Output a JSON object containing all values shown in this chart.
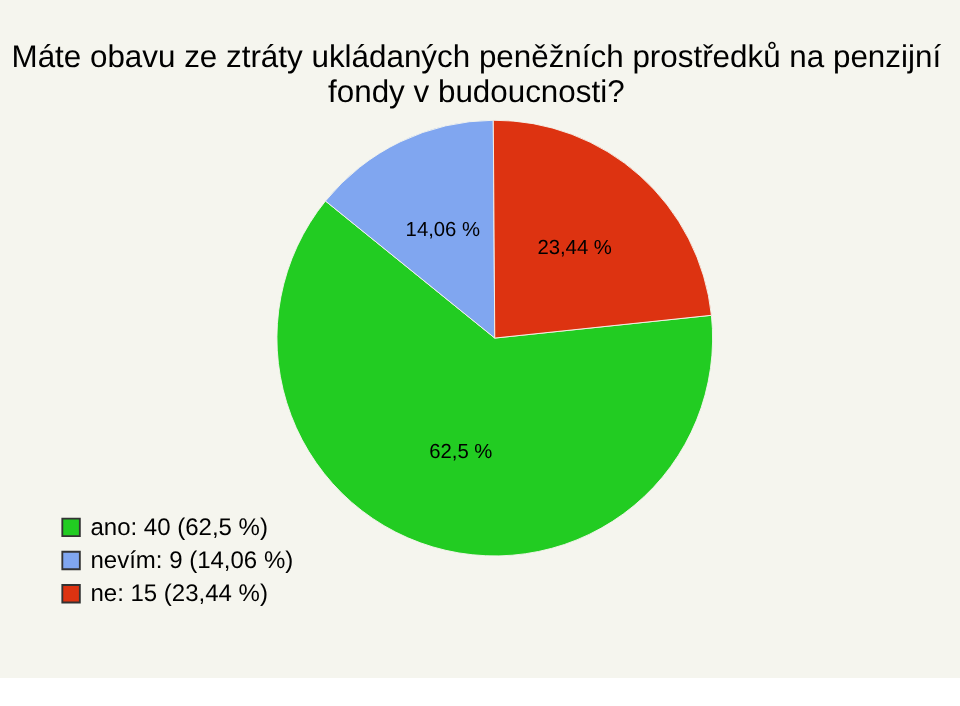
{
  "chart_data": {
    "type": "pie",
    "title": "Máte obavu ze ztráty ukládaných peněžních prostředků na penzijní\nfondy v budoucnosti?",
    "categories": [
      "ano: 40 (62,5 %)",
      "nevím: 9 (14,06 %)",
      "ne: 15 (23,44 %)"
    ],
    "values": [
      62.5,
      14.06,
      23.44
    ],
    "value_labels": [
      "62,5 %",
      "14,06 %",
      "23,44 %"
    ],
    "colors": [
      "#22cc22",
      "#80a6f0",
      "#dd3311"
    ],
    "legend": "bottom left"
  }
}
